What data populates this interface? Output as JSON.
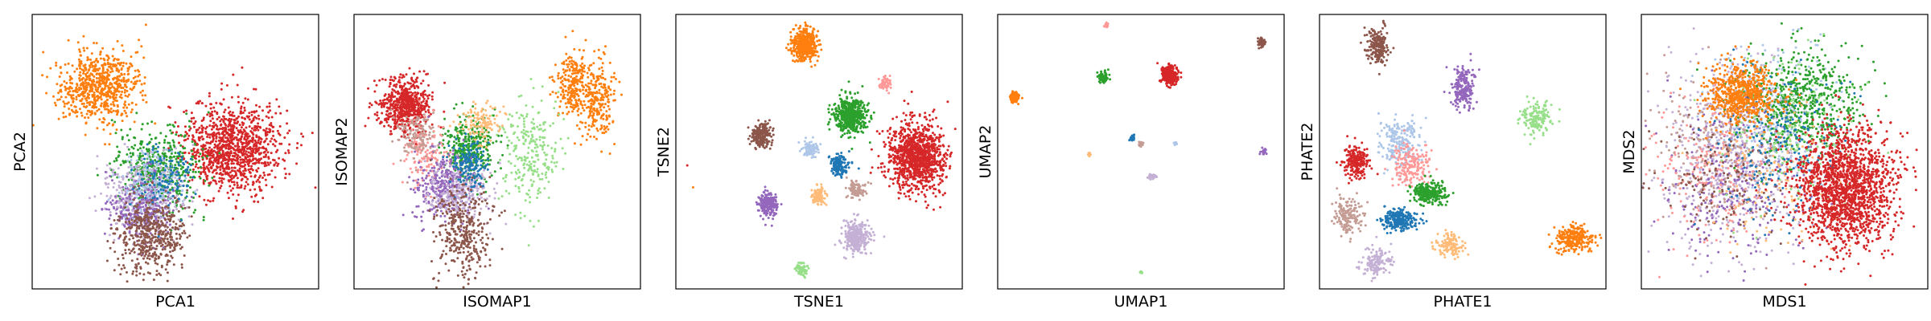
{
  "palette": {
    "blue": "#1f77b4",
    "light_blue": "#aec7e8",
    "orange": "#ff7f0e",
    "light_orange": "#ffbb78",
    "green": "#2ca02c",
    "light_green": "#98df8a",
    "red": "#d62728",
    "pink": "#ff9896",
    "purple": "#9467bd",
    "lavender": "#c5b0d5",
    "brown": "#8c564b",
    "tan": "#c49c94"
  },
  "chart_data": [
    {
      "type": "scatter",
      "xlabel": "PCA1",
      "ylabel": "PCA2",
      "xlim": [
        0,
        10
      ],
      "ylim": [
        0,
        10
      ],
      "ticks": "none",
      "clusters": [
        {
          "color": "orange",
          "cx": 2.4,
          "cy": 7.4,
          "sx": 0.75,
          "sy": 0.65,
          "n": 700
        },
        {
          "color": "red",
          "cx": 7.0,
          "cy": 5.1,
          "sx": 0.85,
          "sy": 0.8,
          "n": 1100
        },
        {
          "color": "green",
          "cx": 4.4,
          "cy": 4.3,
          "sx": 0.75,
          "sy": 0.75,
          "n": 500
        },
        {
          "color": "lavender",
          "cx": 3.9,
          "cy": 3.4,
          "sx": 0.7,
          "sy": 0.7,
          "n": 350
        },
        {
          "color": "purple",
          "cx": 3.8,
          "cy": 3.0,
          "sx": 0.6,
          "sy": 0.6,
          "n": 300
        },
        {
          "color": "light_blue",
          "cx": 4.2,
          "cy": 3.8,
          "sx": 0.6,
          "sy": 0.6,
          "n": 180
        },
        {
          "color": "brown",
          "cx": 4.2,
          "cy": 1.9,
          "sx": 0.6,
          "sy": 0.7,
          "n": 500
        },
        {
          "color": "blue",
          "cx": 4.6,
          "cy": 4.1,
          "sx": 0.55,
          "sy": 0.55,
          "n": 120
        }
      ]
    },
    {
      "type": "scatter",
      "xlabel": "ISOMAP1",
      "ylabel": "ISOMAP2",
      "xlim": [
        0,
        10
      ],
      "ylim": [
        0,
        10
      ],
      "ticks": "none",
      "clusters": [
        {
          "color": "red",
          "cx": 1.8,
          "cy": 6.7,
          "sx": 0.45,
          "sy": 0.5,
          "n": 600
        },
        {
          "color": "orange",
          "cx": 7.6,
          "cy": 7.5,
          "sx": 0.25,
          "sy": 0.6,
          "n": 220
        },
        {
          "color": "orange",
          "cx": 8.5,
          "cy": 6.8,
          "sx": 0.3,
          "sy": 0.75,
          "n": 260
        },
        {
          "color": "light_green",
          "cx": 6.2,
          "cy": 5.0,
          "sx": 0.6,
          "sy": 1.0,
          "n": 250
        },
        {
          "color": "green",
          "cx": 4.0,
          "cy": 5.1,
          "sx": 0.45,
          "sy": 0.6,
          "n": 350
        },
        {
          "color": "light_orange",
          "cx": 4.5,
          "cy": 6.1,
          "sx": 0.35,
          "sy": 0.35,
          "n": 120
        },
        {
          "color": "pink",
          "cx": 2.5,
          "cy": 4.9,
          "sx": 0.35,
          "sy": 0.6,
          "n": 150
        },
        {
          "color": "purple",
          "cx": 3.2,
          "cy": 3.8,
          "sx": 0.5,
          "sy": 0.6,
          "n": 350
        },
        {
          "color": "lavender",
          "cx": 3.7,
          "cy": 3.6,
          "sx": 0.6,
          "sy": 0.5,
          "n": 250
        },
        {
          "color": "blue",
          "cx": 4.1,
          "cy": 4.5,
          "sx": 0.3,
          "sy": 0.5,
          "n": 150
        },
        {
          "color": "tan",
          "cx": 2.2,
          "cy": 5.6,
          "sx": 0.35,
          "sy": 0.5,
          "n": 120
        },
        {
          "color": "brown",
          "cx": 3.8,
          "cy": 2.0,
          "sx": 0.5,
          "sy": 0.9,
          "n": 350
        }
      ]
    },
    {
      "type": "scatter",
      "xlabel": "TSNE1",
      "ylabel": "TSNE2",
      "xlim": [
        0,
        10
      ],
      "ylim": [
        0,
        10
      ],
      "ticks": "none",
      "clusters": [
        {
          "color": "orange",
          "cx": 4.5,
          "cy": 8.9,
          "sx": 0.22,
          "sy": 0.28,
          "n": 450
        },
        {
          "color": "green",
          "cx": 6.1,
          "cy": 6.3,
          "sx": 0.27,
          "sy": 0.33,
          "n": 500
        },
        {
          "color": "red",
          "cx": 8.4,
          "cy": 4.8,
          "sx": 0.5,
          "sy": 0.6,
          "n": 1100
        },
        {
          "color": "pink",
          "cx": 7.3,
          "cy": 7.5,
          "sx": 0.1,
          "sy": 0.12,
          "n": 60
        },
        {
          "color": "brown",
          "cx": 3.0,
          "cy": 5.6,
          "sx": 0.17,
          "sy": 0.22,
          "n": 220
        },
        {
          "color": "light_blue",
          "cx": 4.7,
          "cy": 5.1,
          "sx": 0.13,
          "sy": 0.15,
          "n": 100
        },
        {
          "color": "blue",
          "cx": 5.7,
          "cy": 4.5,
          "sx": 0.15,
          "sy": 0.18,
          "n": 150
        },
        {
          "color": "tan",
          "cx": 6.3,
          "cy": 3.6,
          "sx": 0.14,
          "sy": 0.16,
          "n": 100
        },
        {
          "color": "light_orange",
          "cx": 5.0,
          "cy": 3.4,
          "sx": 0.13,
          "sy": 0.15,
          "n": 100
        },
        {
          "color": "purple",
          "cx": 3.2,
          "cy": 3.1,
          "sx": 0.17,
          "sy": 0.2,
          "n": 200
        },
        {
          "color": "lavender",
          "cx": 6.3,
          "cy": 1.9,
          "sx": 0.24,
          "sy": 0.3,
          "n": 300
        },
        {
          "color": "light_green",
          "cx": 4.4,
          "cy": 0.7,
          "sx": 0.1,
          "sy": 0.13,
          "n": 70
        }
      ],
      "outliers": [
        {
          "color": "red",
          "x": 0.4,
          "y": 4.5
        },
        {
          "color": "orange",
          "x": 0.6,
          "y": 3.7
        }
      ]
    },
    {
      "type": "scatter",
      "xlabel": "UMAP1",
      "ylabel": "UMAP2",
      "xlim": [
        0,
        10
      ],
      "ylim": [
        0,
        10
      ],
      "ticks": "none",
      "clusters": [
        {
          "color": "red",
          "cx": 6.0,
          "cy": 7.8,
          "sx": 0.15,
          "sy": 0.17,
          "n": 300
        },
        {
          "color": "green",
          "cx": 3.7,
          "cy": 7.7,
          "sx": 0.08,
          "sy": 0.09,
          "n": 120
        },
        {
          "color": "orange",
          "cx": 0.6,
          "cy": 7.0,
          "sx": 0.08,
          "sy": 0.09,
          "n": 100
        },
        {
          "color": "brown",
          "cx": 9.2,
          "cy": 9.0,
          "sx": 0.06,
          "sy": 0.07,
          "n": 60
        },
        {
          "color": "pink",
          "cx": 3.8,
          "cy": 9.6,
          "sx": 0.03,
          "sy": 0.04,
          "n": 12
        },
        {
          "color": "blue",
          "cx": 4.7,
          "cy": 5.5,
          "sx": 0.05,
          "sy": 0.05,
          "n": 30
        },
        {
          "color": "tan",
          "cx": 5.0,
          "cy": 5.3,
          "sx": 0.04,
          "sy": 0.05,
          "n": 20
        },
        {
          "color": "light_orange",
          "cx": 3.2,
          "cy": 4.9,
          "sx": 0.03,
          "sy": 0.03,
          "n": 12
        },
        {
          "color": "light_blue",
          "cx": 6.2,
          "cy": 5.3,
          "sx": 0.03,
          "sy": 0.03,
          "n": 12
        },
        {
          "color": "purple",
          "cx": 9.3,
          "cy": 5.0,
          "sx": 0.05,
          "sy": 0.05,
          "n": 35
        },
        {
          "color": "lavender",
          "cx": 5.4,
          "cy": 4.1,
          "sx": 0.06,
          "sy": 0.06,
          "n": 40
        },
        {
          "color": "light_green",
          "cx": 5.0,
          "cy": 0.6,
          "sx": 0.03,
          "sy": 0.03,
          "n": 12
        }
      ]
    },
    {
      "type": "scatter",
      "xlabel": "PHATE1",
      "ylabel": "PHATE2",
      "xlim": [
        0,
        10
      ],
      "ylim": [
        0,
        10
      ],
      "ticks": "none",
      "clusters": [
        {
          "color": "brown",
          "cx": 2.0,
          "cy": 8.8,
          "sx": 0.2,
          "sy": 0.35,
          "n": 200
        },
        {
          "color": "purple",
          "cx": 5.0,
          "cy": 7.3,
          "sx": 0.2,
          "sy": 0.4,
          "n": 200
        },
        {
          "color": "light_green",
          "cx": 7.6,
          "cy": 6.2,
          "sx": 0.3,
          "sy": 0.3,
          "n": 150
        },
        {
          "color": "light_blue",
          "cx": 2.8,
          "cy": 5.4,
          "sx": 0.35,
          "sy": 0.45,
          "n": 220
        },
        {
          "color": "pink",
          "cx": 3.2,
          "cy": 4.5,
          "sx": 0.35,
          "sy": 0.4,
          "n": 180
        },
        {
          "color": "red",
          "cx": 1.3,
          "cy": 4.6,
          "sx": 0.2,
          "sy": 0.3,
          "n": 220
        },
        {
          "color": "green",
          "cx": 3.8,
          "cy": 3.5,
          "sx": 0.3,
          "sy": 0.2,
          "n": 250
        },
        {
          "color": "blue",
          "cx": 2.8,
          "cy": 2.5,
          "sx": 0.3,
          "sy": 0.2,
          "n": 250
        },
        {
          "color": "tan",
          "cx": 1.0,
          "cy": 2.6,
          "sx": 0.25,
          "sy": 0.35,
          "n": 160
        },
        {
          "color": "light_orange",
          "cx": 4.6,
          "cy": 1.6,
          "sx": 0.25,
          "sy": 0.2,
          "n": 130
        },
        {
          "color": "lavender",
          "cx": 2.0,
          "cy": 1.0,
          "sx": 0.25,
          "sy": 0.3,
          "n": 130
        },
        {
          "color": "orange",
          "cx": 8.9,
          "cy": 1.8,
          "sx": 0.35,
          "sy": 0.25,
          "n": 250
        }
      ]
    },
    {
      "type": "scatter",
      "xlabel": "MDS1",
      "ylabel": "MDS2",
      "xlim": [
        0,
        10
      ],
      "ylim": [
        0,
        10
      ],
      "ticks": "none",
      "clusters": [
        {
          "color": "lavender",
          "cx": 3.0,
          "cy": 4.8,
          "sx": 1.2,
          "sy": 1.7,
          "n": 550
        },
        {
          "color": "purple",
          "cx": 3.2,
          "cy": 4.0,
          "sx": 1.2,
          "sy": 1.6,
          "n": 300
        },
        {
          "color": "light_blue",
          "cx": 4.5,
          "cy": 6.5,
          "sx": 1.1,
          "sy": 1.2,
          "n": 300
        },
        {
          "color": "pink",
          "cx": 2.5,
          "cy": 4.2,
          "sx": 1.1,
          "sy": 1.3,
          "n": 200
        },
        {
          "color": "tan",
          "cx": 2.6,
          "cy": 5.2,
          "sx": 1.1,
          "sy": 1.3,
          "n": 200
        },
        {
          "color": "brown",
          "cx": 2.8,
          "cy": 3.8,
          "sx": 1.0,
          "sy": 1.3,
          "n": 150
        },
        {
          "color": "green",
          "cx": 5.6,
          "cy": 6.8,
          "sx": 1.0,
          "sy": 1.0,
          "n": 600
        },
        {
          "color": "light_orange",
          "cx": 4.8,
          "cy": 4.2,
          "sx": 1.2,
          "sy": 1.3,
          "n": 150
        },
        {
          "color": "light_green",
          "cx": 5.2,
          "cy": 5.5,
          "sx": 1.2,
          "sy": 1.3,
          "n": 150
        },
        {
          "color": "blue",
          "cx": 4.8,
          "cy": 5.3,
          "sx": 1.1,
          "sy": 1.3,
          "n": 200
        },
        {
          "color": "orange",
          "cx": 3.5,
          "cy": 7.1,
          "sx": 0.6,
          "sy": 0.55,
          "n": 650
        },
        {
          "color": "red",
          "cx": 7.1,
          "cy": 3.7,
          "sx": 0.85,
          "sy": 1.05,
          "n": 1700
        }
      ]
    }
  ]
}
